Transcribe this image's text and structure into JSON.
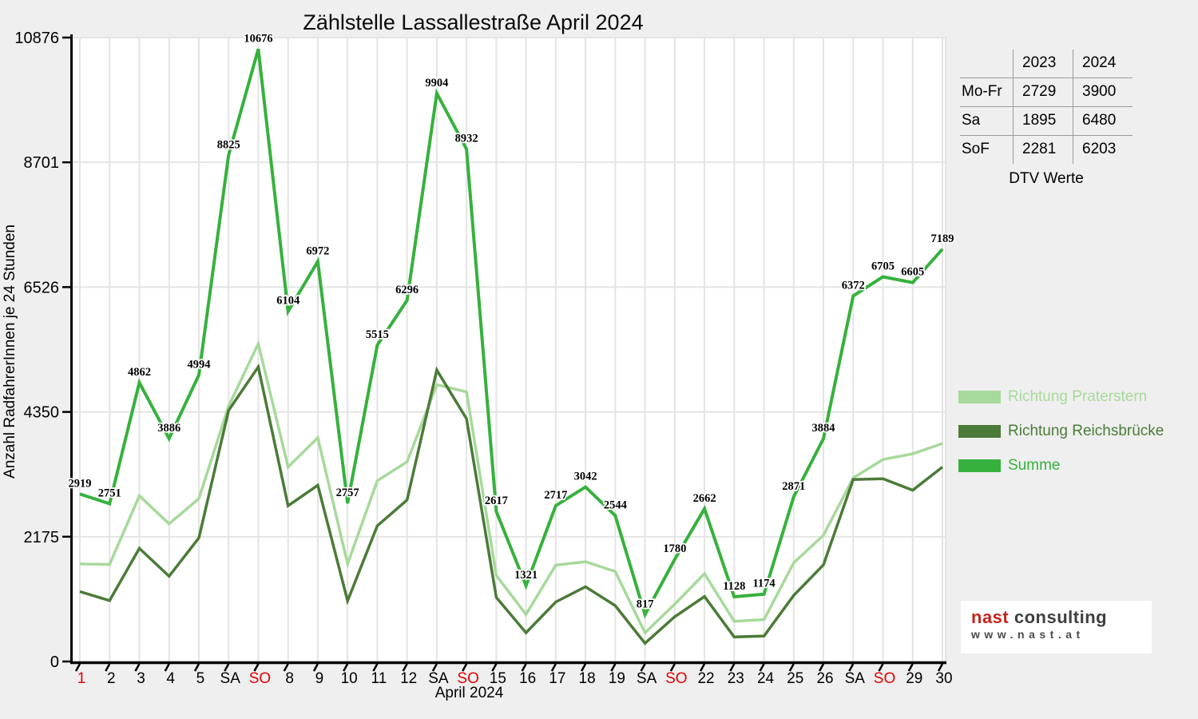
{
  "chart_data": {
    "type": "line",
    "title": "Zählstelle Lassallestraße April 2024",
    "xlabel": "April 2024",
    "ylabel": "Anzahl RadfahrerInnen je 24 Stunden",
    "x_categories": [
      "1",
      "2",
      "3",
      "4",
      "5",
      "SA",
      "SO",
      "8",
      "9",
      "10",
      "11",
      "12",
      "SA",
      "SO",
      "15",
      "16",
      "17",
      "18",
      "19",
      "SA",
      "SO",
      "22",
      "23",
      "24",
      "25",
      "26",
      "SA",
      "SO",
      "29",
      "30"
    ],
    "holiday_red_indices": [
      0,
      6,
      13,
      20,
      27
    ],
    "y_ticks": [
      0,
      2175,
      4350,
      6526,
      8701,
      10876
    ],
    "ylim": [
      0,
      10876
    ],
    "grid": true,
    "legend_position": "right-outside",
    "series": [
      {
        "name": "Richtung Praterstern",
        "color": "#a7d99b",
        "show_value_labels": false,
        "values": [
          1700,
          1690,
          2890,
          2400,
          2840,
          4450,
          5540,
          3390,
          3900,
          1700,
          3150,
          3480,
          4824,
          4700,
          1500,
          820,
          1680,
          1740,
          1570,
          500,
          1000,
          1530,
          700,
          730,
          1720,
          2200,
          3200,
          3520,
          3620,
          3800
        ]
      },
      {
        "name": "Richtung Reichsbrücke",
        "color": "#4b7b38",
        "show_value_labels": false,
        "values": [
          1219,
          1061,
          1972,
          1486,
          2154,
          4375,
          5136,
          2714,
          3072,
          1057,
          2365,
          2816,
          5080,
          4232,
          1117,
          501,
          1037,
          1302,
          974,
          317,
          780,
          1132,
          428,
          444,
          1151,
          1684,
          3172,
          3185,
          2985,
          3389
        ]
      },
      {
        "name": "Summe",
        "color": "#36b13d",
        "show_value_labels": true,
        "values": [
          2919,
          2751,
          4862,
          3886,
          4994,
          8825,
          10676,
          6104,
          6972,
          2757,
          5515,
          6296,
          9904,
          8932,
          2617,
          1321,
          2717,
          3042,
          2544,
          817,
          1780,
          2662,
          1128,
          1174,
          2871,
          3884,
          6372,
          6705,
          6605,
          7189
        ]
      }
    ]
  },
  "table": {
    "col_headers": [
      "2023",
      "2024"
    ],
    "rows": [
      {
        "label": "Mo-Fr",
        "y2023": "2729",
        "y2024": "3900"
      },
      {
        "label": "Sa",
        "y2023": "1895",
        "y2024": "6480"
      },
      {
        "label": "SoF",
        "y2023": "2281",
        "y2024": "6203"
      }
    ],
    "caption": "DTV Werte"
  },
  "logo": {
    "brand_primary": "nast",
    "brand_secondary": " consulting",
    "website": "www.nast.at",
    "brand_red": "#c7231c",
    "brand_gray": "#3f3f3f",
    "website_gray": "#4a4a4a"
  },
  "colors": {
    "page_bg": "#efefef",
    "plot_bg": "#ffffff",
    "grid_line": "#e4e4e4",
    "axis": "#000000",
    "holiday_label": "#e60000",
    "value_label": "#000000",
    "value_label_halo": "#ffffff"
  }
}
